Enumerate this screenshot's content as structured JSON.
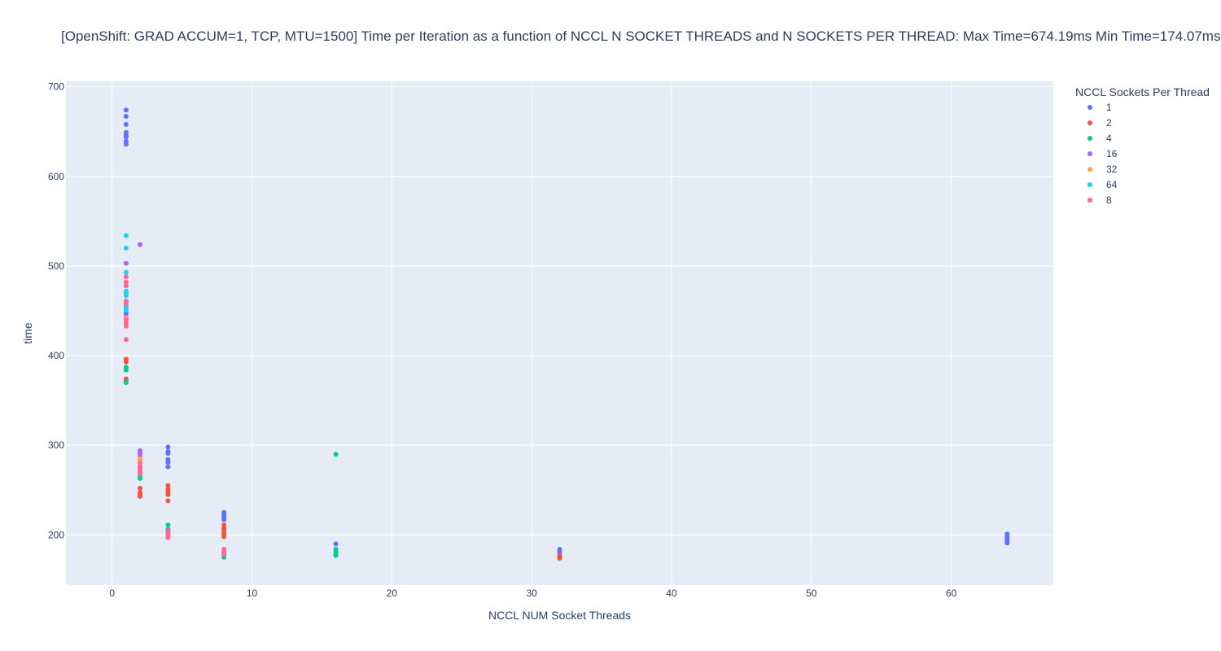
{
  "chart_data": {
    "type": "scatter",
    "title": "[OpenShift: GRAD ACCUM=1, TCP, MTU=1500] Time per Iteration as a function of NCCL N SOCKET THREADS and N SOCKETS PER THREAD: Max Time=674.19ms Min Time=174.07ms",
    "xlabel": "NCCL NUM Socket Threads",
    "ylabel": "time",
    "xlim": [
      -3.3,
      67.3
    ],
    "ylim": [
      144,
      706
    ],
    "xticks": [
      0,
      10,
      20,
      30,
      40,
      50,
      60
    ],
    "yticks": [
      200,
      300,
      400,
      500,
      600,
      700
    ],
    "grid": true,
    "legend": {
      "title": "NCCL Sockets Per Thread",
      "placement": "top-right"
    },
    "series": [
      {
        "name": "1",
        "color": "#636efa",
        "points": [
          [
            1,
            674
          ],
          [
            1,
            667
          ],
          [
            1,
            658
          ],
          [
            1,
            649
          ],
          [
            1,
            646
          ],
          [
            1,
            644
          ],
          [
            1,
            639
          ],
          [
            1,
            636
          ],
          [
            1,
            447
          ],
          [
            1,
            441
          ],
          [
            4,
            298
          ],
          [
            4,
            293
          ],
          [
            4,
            291
          ],
          [
            4,
            284
          ],
          [
            4,
            281
          ],
          [
            4,
            276
          ],
          [
            8,
            225
          ],
          [
            8,
            222
          ],
          [
            8,
            219
          ],
          [
            8,
            217
          ],
          [
            16,
            190
          ],
          [
            32,
            184
          ],
          [
            32,
            181
          ],
          [
            64,
            201
          ],
          [
            64,
            198
          ],
          [
            64,
            195
          ],
          [
            64,
            193
          ],
          [
            64,
            191
          ]
        ]
      },
      {
        "name": "2",
        "color": "#ef553b",
        "points": [
          [
            1,
            396
          ],
          [
            1,
            393
          ],
          [
            1,
            374
          ],
          [
            1,
            371
          ],
          [
            2,
            252
          ],
          [
            2,
            247
          ],
          [
            2,
            245
          ],
          [
            2,
            243
          ],
          [
            4,
            255
          ],
          [
            4,
            251
          ],
          [
            4,
            248
          ],
          [
            4,
            245
          ],
          [
            4,
            238
          ],
          [
            8,
            211
          ],
          [
            8,
            207
          ],
          [
            8,
            204
          ],
          [
            8,
            201
          ],
          [
            8,
            198
          ],
          [
            32,
            177
          ],
          [
            32,
            175
          ],
          [
            32,
            174
          ]
        ]
      },
      {
        "name": "4",
        "color": "#00cc96",
        "points": [
          [
            1,
            387
          ],
          [
            1,
            384
          ],
          [
            1,
            370
          ],
          [
            2,
            266
          ],
          [
            2,
            263
          ],
          [
            4,
            211
          ],
          [
            4,
            206
          ],
          [
            4,
            203
          ],
          [
            8,
            181
          ],
          [
            8,
            178
          ],
          [
            8,
            175
          ],
          [
            16,
            290
          ],
          [
            16,
            184
          ],
          [
            16,
            181
          ],
          [
            16,
            178
          ],
          [
            16,
            177
          ]
        ]
      },
      {
        "name": "16",
        "color": "#ab63fa",
        "points": [
          [
            1,
            503
          ],
          [
            1,
            453
          ],
          [
            1,
            443
          ],
          [
            2,
            524
          ],
          [
            2,
            294
          ],
          [
            2,
            291
          ],
          [
            2,
            288
          ],
          [
            2,
            285
          ],
          [
            4,
            205
          ],
          [
            4,
            201
          ]
        ]
      },
      {
        "name": "32",
        "color": "#ffa15a",
        "points": [
          [
            1,
            442
          ],
          [
            1,
            438
          ],
          [
            2,
            285
          ],
          [
            2,
            283
          ]
        ]
      },
      {
        "name": "64",
        "color": "#19d3f3",
        "points": [
          [
            1,
            534
          ],
          [
            1,
            520
          ],
          [
            1,
            493
          ],
          [
            1,
            472
          ],
          [
            1,
            470
          ],
          [
            1,
            467
          ],
          [
            1,
            456
          ],
          [
            1,
            451
          ]
        ]
      },
      {
        "name": "8",
        "color": "#ff6692",
        "points": [
          [
            1,
            488
          ],
          [
            1,
            482
          ],
          [
            1,
            478
          ],
          [
            1,
            461
          ],
          [
            1,
            458
          ],
          [
            1,
            440
          ],
          [
            1,
            436
          ],
          [
            1,
            433
          ],
          [
            1,
            418
          ],
          [
            2,
            280
          ],
          [
            2,
            276
          ],
          [
            2,
            273
          ],
          [
            2,
            270
          ],
          [
            2,
            268
          ],
          [
            4,
            204
          ],
          [
            4,
            201
          ],
          [
            4,
            199
          ],
          [
            4,
            197
          ],
          [
            8,
            184
          ],
          [
            8,
            181
          ],
          [
            8,
            178
          ]
        ]
      }
    ]
  }
}
